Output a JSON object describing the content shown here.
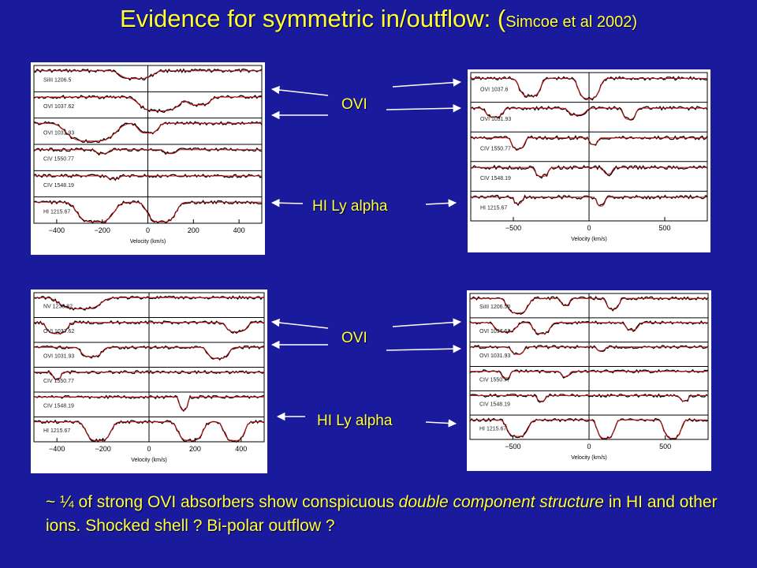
{
  "title": {
    "main": "Evidence for symmetric in/outflow:",
    "cite_paren_open": "(",
    "cite": "Simcoe et al 2002",
    "cite_paren_close": ")"
  },
  "labels": {
    "ovi_top": "OVI",
    "hi_top": "HI Ly alpha",
    "ovi_bottom": "OVI",
    "hi_bottom": "HI Ly alpha"
  },
  "caption": {
    "part1": "~  ¼ of strong OVI absorbers show conspicuous ",
    "italic1": "double component structure",
    "part2": " in HI and other ions. Shocked shell ? Bi-polar outflow ?"
  },
  "panels": [
    {
      "name": "panel-top-left",
      "rows": [
        "SiIII 1206.5",
        "OVI 1037.62",
        "OVI 1031.93",
        "CIV 1550.77",
        "CIV 1548.19",
        "HI 1215.67"
      ],
      "xticks": [
        "−400",
        "−200",
        "0",
        "200",
        "400"
      ],
      "xlabel": "Velocity (km/s)"
    },
    {
      "name": "panel-top-right",
      "rows": [
        "OVI 1037.6",
        "OVI 1031.93",
        "CIV 1550.77",
        "CIV 1548.19",
        "HI 1215.67"
      ],
      "xticks": [
        "−500",
        "0",
        "500"
      ],
      "xlabel": "Velocity (km/s)"
    },
    {
      "name": "panel-bottom-left",
      "rows": [
        "NV 1238.82",
        "OVI 1037.62",
        "OVI 1031.93",
        "CIV 1550.77",
        "CIV 1548.19",
        "HI 1215.67"
      ],
      "xticks": [
        "−400",
        "−200",
        "0",
        "200",
        "400"
      ],
      "xlabel": "Velocity (km/s)"
    },
    {
      "name": "panel-bottom-right",
      "rows": [
        "SiIII 1206.50",
        "OVI 1037.62",
        "OVI 1031.93",
        "CIV 1550.77",
        "CIV 1548.19",
        "HI 1215.67"
      ],
      "xticks": [
        "−500",
        "0",
        "500"
      ],
      "xlabel": "Velocity (km/s)"
    }
  ]
}
